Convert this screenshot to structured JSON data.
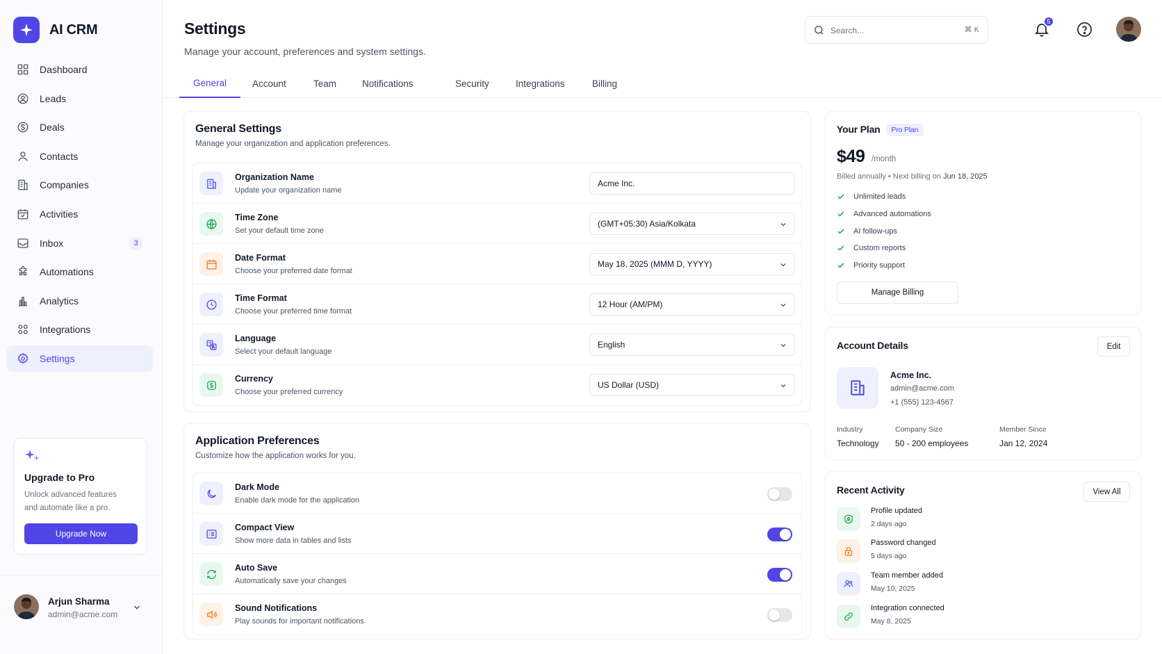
{
  "app": {
    "name": "AI CRM"
  },
  "sidebar": {
    "items": [
      {
        "label": "Dashboard",
        "icon": "dashboard-grid-icon"
      },
      {
        "label": "Leads",
        "icon": "user-circle-icon"
      },
      {
        "label": "Deals",
        "icon": "dollar-circle-icon"
      },
      {
        "label": "Contacts",
        "icon": "user-icon"
      },
      {
        "label": "Companies",
        "icon": "building-icon"
      },
      {
        "label": "Activities",
        "icon": "calendar-check-icon"
      },
      {
        "label": "Inbox",
        "icon": "inbox-icon",
        "badge": "3"
      },
      {
        "label": "Automations",
        "icon": "puzzle-icon"
      },
      {
        "label": "Analytics",
        "icon": "bar-chart-icon"
      },
      {
        "label": "Integrations",
        "icon": "apps-icon"
      },
      {
        "label": "Settings",
        "icon": "gear-icon",
        "active": true
      }
    ],
    "upgrade": {
      "title": "Upgrade to Pro",
      "desc_line1": "Unlock advanced features",
      "desc_line2": "and automate like a pro.",
      "button": "Upgrade Now"
    },
    "user": {
      "name": "Arjun Sharma",
      "email": "admin@acme.com"
    }
  },
  "header": {
    "title": "Settings",
    "subtitle": "Manage your account, preferences and system settings.",
    "search_placeholder": "Search...",
    "search_shortcut": "⌘ K",
    "notifications_count": "5"
  },
  "tabs": [
    {
      "label": "General",
      "active": true
    },
    {
      "label": "Account"
    },
    {
      "label": "Team"
    },
    {
      "label": "Notifications"
    },
    {
      "label": "Security"
    },
    {
      "label": "Integrations"
    },
    {
      "label": "Billing"
    }
  ],
  "general": {
    "title": "General Settings",
    "subtitle": "Manage your organization and application preferences.",
    "rows": [
      {
        "label": "Organization Name",
        "desc": "Update your organization name",
        "value": "Acme Inc.",
        "icon": "building-icon"
      },
      {
        "label": "Time Zone",
        "desc": "Set your default time zone",
        "value": "(GMT+05:30) Asia/Kolkata",
        "icon": "globe-icon"
      },
      {
        "label": "Date Format",
        "desc": "Choose your preferred date format",
        "value": "May 18, 2025 (MMM D, YYYY)",
        "icon": "calendar-icon"
      },
      {
        "label": "Time Format",
        "desc": "Choose your preferred time format",
        "value": "12 Hour (AM/PM)",
        "icon": "clock-icon"
      },
      {
        "label": "Language",
        "desc": "Select your default language",
        "value": "English",
        "icon": "translate-icon"
      },
      {
        "label": "Currency",
        "desc": "Choose your preferred currency",
        "value": "US Dollar (USD)",
        "icon": "currency-icon"
      }
    ]
  },
  "preferences": {
    "title": "Application Preferences",
    "subtitle": "Customize how the application works for you.",
    "rows": [
      {
        "label": "Dark Mode",
        "desc": "Enable dark mode for the application",
        "on": false,
        "icon": "moon-icon"
      },
      {
        "label": "Compact View",
        "desc": "Show more data in tables and lists",
        "on": true,
        "icon": "list-icon"
      },
      {
        "label": "Auto Save",
        "desc": "Automatically save your changes",
        "on": true,
        "icon": "refresh-icon"
      },
      {
        "label": "Sound Notifications",
        "desc": "Play sounds for important notifications",
        "on": false,
        "icon": "speaker-icon"
      }
    ]
  },
  "plan": {
    "title": "Your Plan",
    "badge": "Pro Plan",
    "price": "$49",
    "period": "/month",
    "billing_prefix": "Billed annually • Next billing on ",
    "billing_date": "Jun 18, 2025",
    "features": [
      "Unlimited leads",
      "Advanced automations",
      "AI follow-ups",
      "Custom reports",
      "Priority support"
    ],
    "button": "Manage Billing"
  },
  "account": {
    "title": "Account Details",
    "edit": "Edit",
    "name": "Acme Inc.",
    "email": "admin@acme.com",
    "phone": "+1 (555) 123-4567",
    "meta": [
      {
        "label": "Industry",
        "value": "Technology"
      },
      {
        "label": "Company Size",
        "value": "50 - 200 employees"
      },
      {
        "label": "Member Since",
        "value": "Jan 12, 2024"
      }
    ]
  },
  "activity": {
    "title": "Recent Activity",
    "view_all": "View All",
    "items": [
      {
        "title": "Profile updated",
        "time": "2 days ago",
        "icon": "user-shield-icon",
        "color": "green"
      },
      {
        "title": "Password changed",
        "time": "5 days ago",
        "icon": "lock-icon",
        "color": "orange"
      },
      {
        "title": "Team member added",
        "time": "May 10, 2025",
        "icon": "users-icon",
        "color": "indigo"
      },
      {
        "title": "Integration connected",
        "time": "May 8, 2025",
        "icon": "link-icon",
        "color": "green"
      }
    ]
  }
}
